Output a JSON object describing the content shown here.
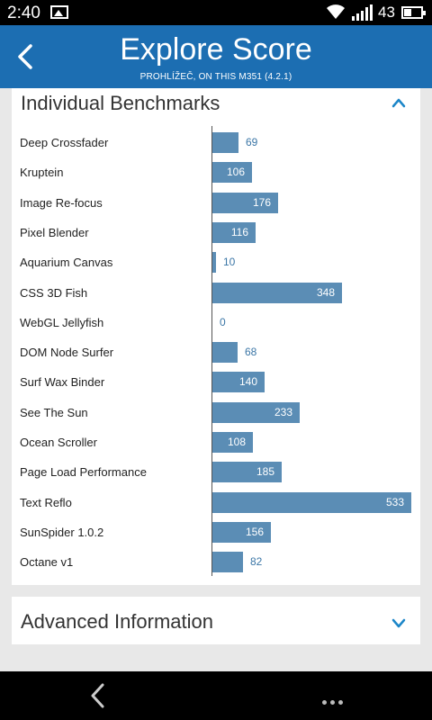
{
  "status_bar": {
    "time": "2:40",
    "battery_percent": "43",
    "icons": [
      "image-icon",
      "wifi-icon",
      "signal-icon",
      "battery-icon"
    ]
  },
  "header": {
    "title": "Explore Score",
    "subtitle": "PROHLÍŽEČ, ON THIS M351 (4.2.1)",
    "color": "#1c6eb2"
  },
  "benchmarks_card": {
    "title": "Individual Benchmarks",
    "expanded": true
  },
  "advanced_card": {
    "title": "Advanced Information",
    "expanded": false
  },
  "accent_color": "#5b8db5",
  "chart_data": {
    "type": "bar",
    "orientation": "horizontal",
    "categories": [
      "Deep Crossfader",
      "Kruptein",
      "Image Re-focus",
      "Pixel Blender",
      "Aquarium Canvas",
      "CSS 3D Fish",
      "WebGL Jellyfish",
      "DOM Node Surfer",
      "Surf Wax Binder",
      "See The Sun",
      "Ocean Scroller",
      "Page Load Performance",
      "Text Reflo",
      "SunSpider 1.0.2",
      "Octane v1"
    ],
    "values": [
      69,
      106,
      176,
      116,
      10,
      348,
      0,
      68,
      140,
      233,
      108,
      185,
      533,
      156,
      82
    ],
    "xlim": [
      0,
      533
    ]
  }
}
